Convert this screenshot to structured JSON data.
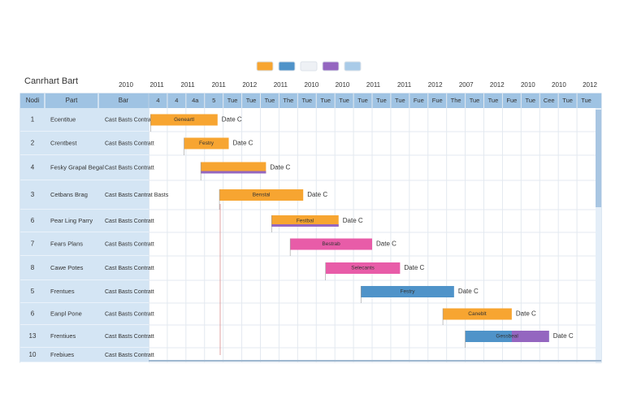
{
  "chart_data": {
    "type": "gantt",
    "title": "Canrhart Bart",
    "legend_colors": [
      "#f7a531",
      "#4f93c9",
      "#eef1f5",
      "#9466c0",
      "#a9cbe8"
    ],
    "period_labels": [
      "2010",
      "2011",
      "2011",
      "2011",
      "2012",
      "2011",
      "2010",
      "2010",
      "2011",
      "2011",
      "2012",
      "2007",
      "2012",
      "2010",
      "2010",
      "2012"
    ],
    "table_headers": [
      "Nodi",
      "Part",
      "Bar"
    ],
    "columns": [
      "4",
      "4",
      "4a",
      "5",
      "Tue",
      "Tue",
      "Tue",
      "The",
      "Tue",
      "Tue",
      "Tue",
      "Tue",
      "Tue",
      "Tue",
      "Fue",
      "Fue",
      "The",
      "Tue",
      "Tue",
      "Fue",
      "Tue",
      "Cee",
      "Tue",
      "Tue"
    ],
    "accent_color": "#9466c0",
    "tasks": [
      {
        "id": "1",
        "name": "Ecentitue",
        "detail": "Cast Basts Contratt",
        "start": 0.1,
        "end": 3.7,
        "color": "#f7a531",
        "inner": "Geneartl",
        "label": "Date C",
        "accent": false
      },
      {
        "id": "2",
        "name": "Crentbest",
        "detail": "Cast Basts Contratt",
        "start": 1.9,
        "end": 4.3,
        "color": "#f7a531",
        "inner": "Festry",
        "label": "Date C",
        "accent": false
      },
      {
        "id": "4",
        "name": "Fesky Grapal Begal",
        "detail": "Cast Basts Contratt",
        "start": 2.8,
        "end": 6.3,
        "color": "#f7a531",
        "inner": "",
        "label": "Date C",
        "accent": true
      },
      {
        "id": "3",
        "name": "Cetbans Brag",
        "detail": "Cast Basts Cantrat Basts",
        "start": 3.8,
        "end": 8.3,
        "color": "#f7a531",
        "inner": "Benstal",
        "label": "Date C",
        "accent": false
      },
      {
        "id": "6",
        "name": "Pear Ling Parry",
        "detail": "Cast Basts Contratt",
        "start": 6.6,
        "end": 10.2,
        "color": "#f7a531",
        "inner": "Festbal",
        "label": "Date C",
        "accent": true
      },
      {
        "id": "7",
        "name": "Fears Plans",
        "detail": "Cast Basts Contratt",
        "start": 7.6,
        "end": 12.0,
        "color": "#e85ca8",
        "inner": "Bestrab",
        "label": "Date C",
        "accent": false
      },
      {
        "id": "8",
        "name": "Cawe Potes",
        "detail": "Cast Basts Contratt",
        "start": 9.5,
        "end": 13.5,
        "color": "#e85ca8",
        "inner": "Selecants",
        "label": "Date C",
        "accent": false
      },
      {
        "id": "5",
        "name": "Frentues",
        "detail": "Cast Basts Contratt",
        "start": 11.4,
        "end": 16.4,
        "color": "#4f93c9",
        "inner": "Festry",
        "label": "Date C",
        "accent": false
      },
      {
        "id": "6",
        "name": "Eanpl Pone",
        "detail": "Cast Basts Contratt",
        "start": 15.8,
        "end": 19.5,
        "color": "#f7a531",
        "inner": "Caneblt",
        "label": "Date C",
        "accent": false
      },
      {
        "id": "13",
        "name": "Frentiues",
        "detail": "Cast Basts Contratt",
        "start": 17.0,
        "end": 21.5,
        "color": "#4f93c9",
        "inner": "Gessbeal",
        "label": "Date C",
        "accent": true
      },
      {
        "id": "10",
        "name": "Frebiues",
        "detail": "Cast Basts Contratt",
        "start": null,
        "end": null,
        "color": "#4f93c9",
        "inner": "",
        "label": "",
        "accent": false
      }
    ]
  }
}
